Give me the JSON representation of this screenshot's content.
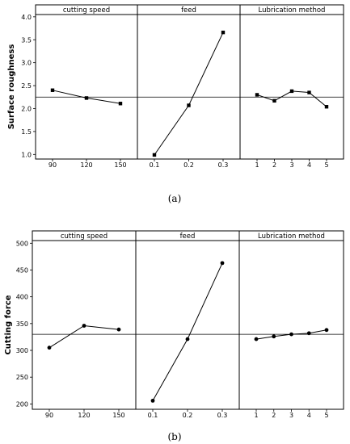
{
  "chart_data": [
    {
      "type": "line",
      "caption": "(a)",
      "ylabel": "Surface roughness",
      "ylim": [
        0.9,
        4.05
      ],
      "yticks": [
        1.0,
        1.5,
        2.0,
        2.5,
        3.0,
        3.5,
        4.0
      ],
      "ytick_labels": [
        "1.0",
        "1.5",
        "2.0",
        "2.5",
        "3.0",
        "3.5",
        "4.0"
      ],
      "ref_line": 2.25,
      "marker": "square",
      "panels": [
        {
          "title": "cutting speed",
          "categories": [
            "90",
            "120",
            "150"
          ],
          "values": [
            2.4,
            2.23,
            2.11
          ]
        },
        {
          "title": "feed",
          "categories": [
            "0.1",
            "0.2",
            "0.3"
          ],
          "values": [
            0.99,
            2.07,
            3.66
          ]
        },
        {
          "title": "Lubrication method",
          "categories": [
            "1",
            "2",
            "3",
            "4",
            "5"
          ],
          "values": [
            2.3,
            2.17,
            2.38,
            2.35,
            2.04
          ]
        }
      ]
    },
    {
      "type": "line",
      "caption": "(b)",
      "ylabel": "Cutting force",
      "ylim": [
        190,
        505
      ],
      "yticks": [
        200,
        250,
        300,
        350,
        400,
        450,
        500
      ],
      "ytick_labels": [
        "200",
        "250",
        "300",
        "350",
        "400",
        "450",
        "500"
      ],
      "ref_line": 330,
      "marker": "circle",
      "panels": [
        {
          "title": "cutting speed",
          "categories": [
            "90",
            "120",
            "150"
          ],
          "values": [
            305,
            346,
            339
          ]
        },
        {
          "title": "feed",
          "categories": [
            "0.1",
            "0.2",
            "0.3"
          ],
          "values": [
            206,
            321,
            463
          ]
        },
        {
          "title": "Lubrication method",
          "categories": [
            "1",
            "2",
            "3",
            "4",
            "5"
          ],
          "values": [
            321,
            326,
            330,
            332,
            338
          ]
        }
      ]
    }
  ]
}
